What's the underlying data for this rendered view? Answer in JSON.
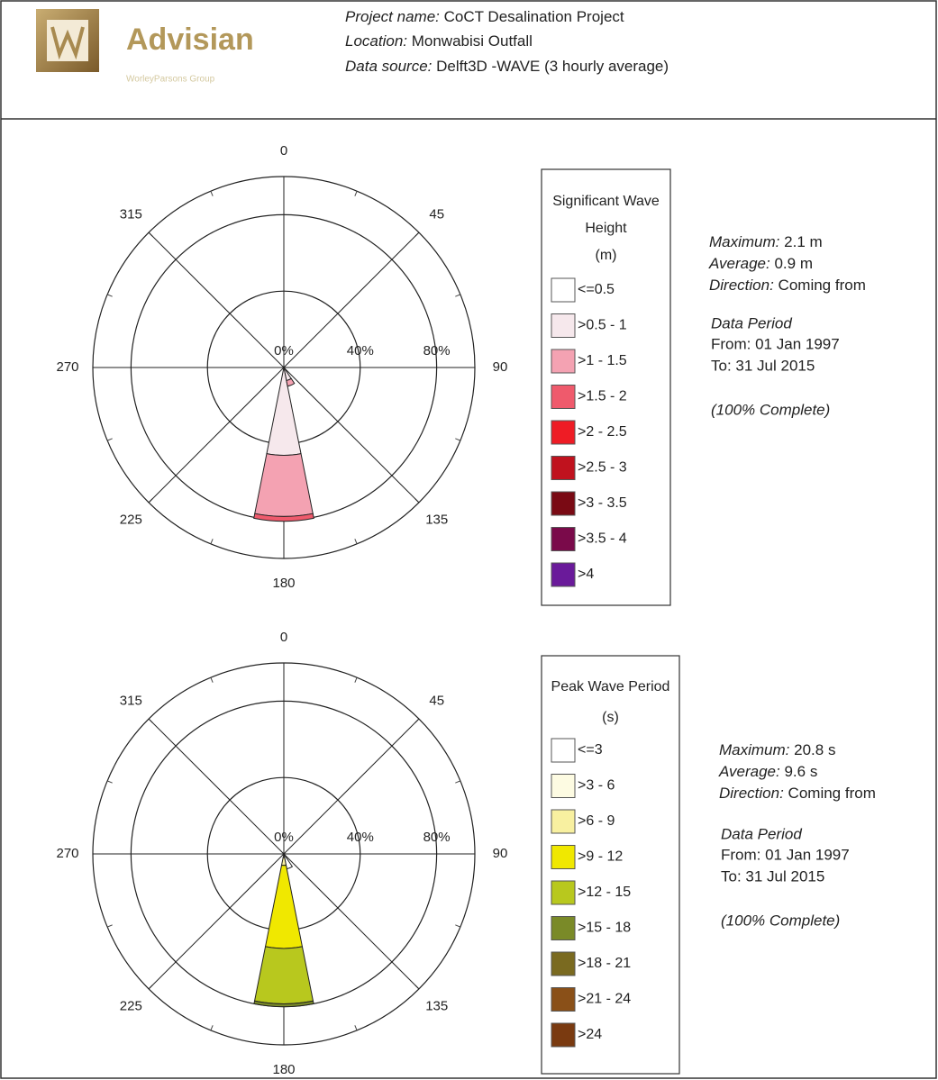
{
  "header": {
    "logo_name": "Advisian",
    "logo_tagline": "WorleyParsons Group",
    "lines": [
      {
        "label": "Project name:",
        "value": "CoCT Desalination Project"
      },
      {
        "label": "Location:",
        "value": "Monwabisi Outfall"
      },
      {
        "label": "Data source:",
        "value": "Delft3D -WAVE (3 hourly average)"
      }
    ]
  },
  "chart_data": [
    {
      "type": "rose",
      "legend_title": [
        "Significant Wave",
        "Height",
        "(m)"
      ],
      "x": [
        157.5,
        180
      ],
      "rlim": [
        0,
        100
      ],
      "rticks": [
        {
          "value": 0,
          "label": "0%"
        },
        {
          "value": 40,
          "label": "40%"
        },
        {
          "value": 80,
          "label": "80%"
        }
      ],
      "angle_ticks": [
        0,
        45,
        90,
        135,
        180,
        225,
        270,
        315
      ],
      "series": [
        {
          "name": "<=0.5",
          "color": "#ffffff",
          "values": [
            0,
            0
          ]
        },
        {
          "name": ">0.5 - 1",
          "color": "#f6e8ec",
          "values": [
            7,
            46
          ]
        },
        {
          "name": ">1 - 1.5",
          "color": "#f4a2b2",
          "values": [
            3,
            32
          ]
        },
        {
          "name": ">1.5 - 2",
          "color": "#ef5a6c",
          "values": [
            0,
            2.5
          ]
        },
        {
          "name": ">2 - 2.5",
          "color": "#ee1c25",
          "values": [
            0,
            0
          ]
        },
        {
          "name": ">2.5 - 3",
          "color": "#c0121e",
          "values": [
            0,
            0
          ]
        },
        {
          "name": ">3 - 3.5",
          "color": "#7a0a14",
          "values": [
            0,
            0
          ]
        },
        {
          "name": ">3.5 - 4",
          "color": "#7a0a4a",
          "values": [
            0,
            0
          ]
        },
        {
          "name": ">4",
          "color": "#6a1a9a",
          "values": [
            0,
            0
          ]
        }
      ],
      "stats": [
        {
          "label": "Maximum:",
          "value": "2.1 m"
        },
        {
          "label": "Average:",
          "value": "0.9 m"
        },
        {
          "label": "Direction:",
          "value": "Coming from"
        }
      ],
      "period_title": "Data Period",
      "period": [
        "From: 01 Jan 1997",
        "To: 31 Jul 2015"
      ],
      "completeness": "(100% Complete)"
    },
    {
      "type": "rose",
      "legend_title": [
        "Peak Wave Period",
        "(s)"
      ],
      "x": [
        157.5,
        180
      ],
      "rlim": [
        0,
        100
      ],
      "rticks": [
        {
          "value": 0,
          "label": "0%"
        },
        {
          "value": 40,
          "label": "40%"
        },
        {
          "value": 80,
          "label": "80%"
        }
      ],
      "angle_ticks": [
        0,
        45,
        90,
        135,
        180,
        225,
        270,
        315
      ],
      "series": [
        {
          "name": "<=3",
          "color": "#ffffff",
          "values": [
            8,
            0
          ]
        },
        {
          "name": ">3 - 6",
          "color": "#fdfbe2",
          "values": [
            0,
            2
          ]
        },
        {
          "name": ">6 - 9",
          "color": "#f8f0a0",
          "values": [
            0,
            4
          ]
        },
        {
          "name": ">9 - 12",
          "color": "#f0e800",
          "values": [
            0,
            43.5
          ]
        },
        {
          "name": ">12 - 15",
          "color": "#b8c81e",
          "values": [
            0,
            29
          ]
        },
        {
          "name": ">15 - 18",
          "color": "#7a8a28",
          "values": [
            0,
            1.5
          ]
        },
        {
          "name": ">18 - 21",
          "color": "#7a6a20",
          "values": [
            0,
            0
          ]
        },
        {
          "name": ">21 - 24",
          "color": "#8a5018",
          "values": [
            0,
            0
          ]
        },
        {
          "name": ">24",
          "color": "#7a3a10",
          "values": [
            0,
            0
          ]
        }
      ],
      "stats": [
        {
          "label": "Maximum:",
          "value": "20.8 s"
        },
        {
          "label": "Average:",
          "value": "9.6 s"
        },
        {
          "label": "Direction:",
          "value": "Coming from"
        }
      ],
      "period_title": "Data Period",
      "period": [
        "From: 01 Jan 1997",
        "To: 31 Jul 2015"
      ],
      "completeness": "(100% Complete)"
    }
  ]
}
